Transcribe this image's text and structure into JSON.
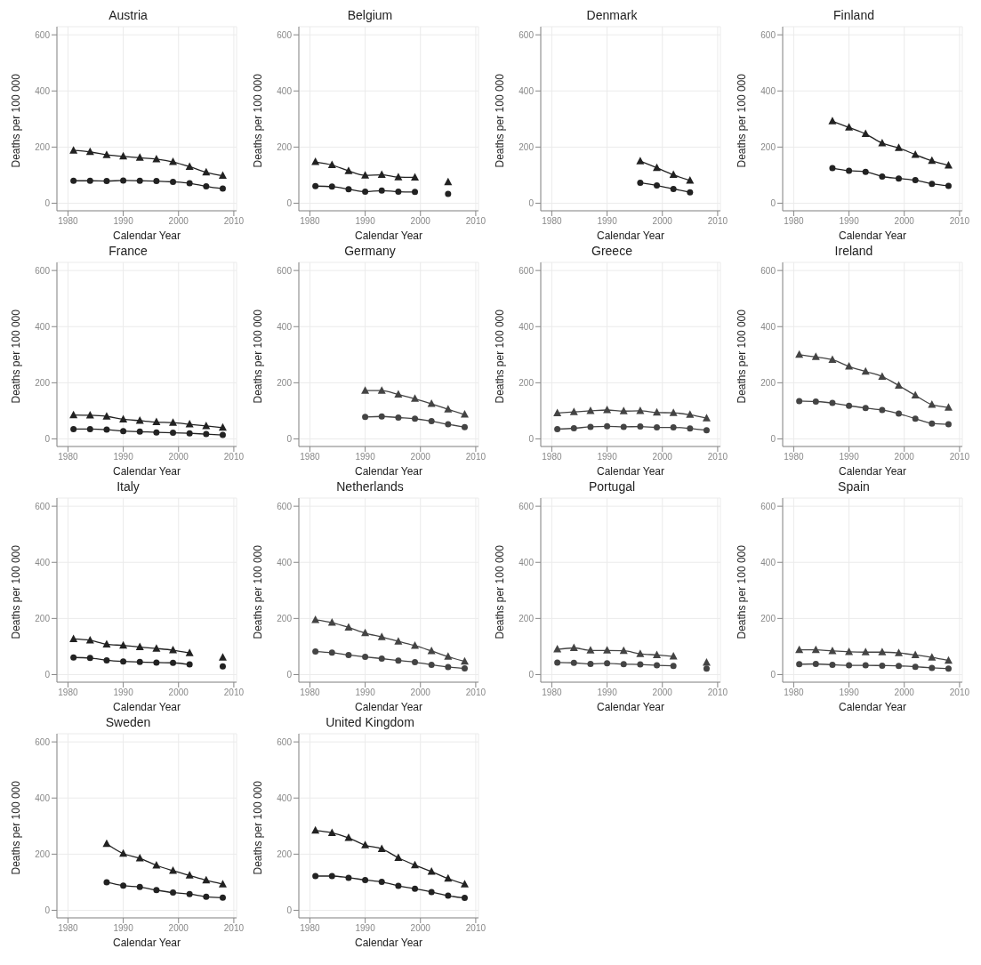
{
  "chart_data": [
    {
      "type": "line",
      "title": "Austria",
      "xlabel": "Calendar Year",
      "ylabel": "Deaths per 100 000",
      "x": [
        1981,
        1984,
        1987,
        1990,
        1993,
        1996,
        1999,
        2002,
        2005,
        2008
      ],
      "xlim": [
        1978,
        2010.5
      ],
      "xticks": [
        1980,
        1990,
        2000,
        2010
      ],
      "ylim": [
        -27,
        629
      ],
      "yticks": [
        0,
        200,
        400,
        600
      ],
      "grid": true,
      "legend": false,
      "line_style": "solid",
      "series": [
        {
          "color": "#222222",
          "marker": "triangle",
          "values": [
            188,
            183,
            172,
            167,
            162,
            157,
            147,
            130,
            110,
            98
          ]
        },
        {
          "color": "#222222",
          "marker": "circle",
          "values": [
            80,
            80,
            79,
            81,
            80,
            79,
            76,
            71,
            60,
            52
          ]
        }
      ]
    },
    {
      "type": "line",
      "title": "Belgium",
      "xlabel": "Calendar Year",
      "ylabel": "Deaths per 100 000",
      "x": [
        1981,
        1984,
        1987,
        1990,
        1993,
        1996,
        1999,
        2002,
        2005
      ],
      "xlim": [
        1978,
        2010.5
      ],
      "xticks": [
        1980,
        1990,
        2000,
        2010
      ],
      "ylim": [
        -27,
        629
      ],
      "yticks": [
        0,
        200,
        400,
        600
      ],
      "grid": true,
      "legend": false,
      "line_style": "solid",
      "series": [
        {
          "color": "#222222",
          "marker": "triangle",
          "values": [
            147,
            136,
            115,
            99,
            101,
            93,
            92,
            null,
            75
          ]
        },
        {
          "color": "#222222",
          "marker": "circle",
          "values": [
            61,
            59,
            50,
            41,
            45,
            41,
            40,
            null,
            33
          ]
        }
      ]
    },
    {
      "type": "line",
      "title": "Denmark",
      "xlabel": "Calendar Year",
      "ylabel": "Deaths per 100 000",
      "x": [
        1996,
        1999,
        2002,
        2005
      ],
      "xlim": [
        1978,
        2010.5
      ],
      "xticks": [
        1980,
        1990,
        2000,
        2010
      ],
      "ylim": [
        -27,
        629
      ],
      "yticks": [
        0,
        200,
        400,
        600
      ],
      "grid": true,
      "legend": false,
      "line_style": "solid",
      "series": [
        {
          "color": "#222222",
          "marker": "triangle",
          "values": [
            150,
            126,
            101,
            81
          ]
        },
        {
          "color": "#222222",
          "marker": "circle",
          "values": [
            73,
            63,
            51,
            39
          ]
        }
      ]
    },
    {
      "type": "line",
      "title": "Finland",
      "xlabel": "Calendar Year",
      "ylabel": "Deaths per 100 000",
      "x": [
        1987,
        1990,
        1993,
        1996,
        1999,
        2002,
        2005,
        2008
      ],
      "xlim": [
        1978,
        2010.5
      ],
      "xticks": [
        1980,
        1990,
        2000,
        2010
      ],
      "ylim": [
        -27,
        629
      ],
      "yticks": [
        0,
        200,
        400,
        600
      ],
      "grid": true,
      "legend": false,
      "line_style": "solid",
      "series": [
        {
          "color": "#222222",
          "marker": "triangle",
          "values": [
            292,
            270,
            247,
            214,
            197,
            173,
            151,
            135
          ]
        },
        {
          "color": "#222222",
          "marker": "circle",
          "values": [
            125,
            116,
            112,
            95,
            88,
            82,
            69,
            62
          ]
        }
      ]
    },
    {
      "type": "line",
      "title": "France",
      "xlabel": "Calendar Year",
      "ylabel": "Deaths per 100 000",
      "x": [
        1981,
        1984,
        1987,
        1990,
        1993,
        1996,
        1999,
        2002,
        2005,
        2008
      ],
      "xlim": [
        1978,
        2010.5
      ],
      "xticks": [
        1980,
        1990,
        2000,
        2010
      ],
      "ylim": [
        -27,
        629
      ],
      "yticks": [
        0,
        200,
        400,
        600
      ],
      "grid": true,
      "legend": false,
      "line_style": "solid",
      "series": [
        {
          "color": "#222222",
          "marker": "triangle",
          "values": [
            85,
            84,
            80,
            70,
            65,
            60,
            58,
            52,
            46,
            40
          ]
        },
        {
          "color": "#222222",
          "marker": "circle",
          "values": [
            35,
            35,
            33,
            28,
            26,
            23,
            22,
            20,
            17,
            14
          ]
        }
      ]
    },
    {
      "type": "line",
      "title": "Germany",
      "xlabel": "Calendar Year",
      "ylabel": "Deaths per 100 000",
      "x": [
        1990,
        1993,
        1996,
        1999,
        2002,
        2005,
        2008
      ],
      "xlim": [
        1978,
        2010.5
      ],
      "xticks": [
        1980,
        1990,
        2000,
        2010
      ],
      "ylim": [
        -27,
        629
      ],
      "yticks": [
        0,
        200,
        400,
        600
      ],
      "grid": true,
      "legend": false,
      "line_style": "solid",
      "series": [
        {
          "color": "#444444",
          "marker": "triangle",
          "values": [
            172,
            172,
            158,
            143,
            125,
            105,
            87
          ]
        },
        {
          "color": "#444444",
          "marker": "circle",
          "values": [
            78,
            80,
            76,
            72,
            63,
            52,
            42
          ]
        }
      ]
    },
    {
      "type": "line",
      "title": "Greece",
      "xlabel": "Calendar Year",
      "ylabel": "Deaths per 100 000",
      "x": [
        1981,
        1984,
        1987,
        1990,
        1993,
        1996,
        1999,
        2002,
        2005,
        2008
      ],
      "xlim": [
        1978,
        2010.5
      ],
      "xticks": [
        1980,
        1990,
        2000,
        2010
      ],
      "ylim": [
        -27,
        629
      ],
      "yticks": [
        0,
        200,
        400,
        600
      ],
      "grid": true,
      "legend": false,
      "line_style": "solid",
      "series": [
        {
          "color": "#444444",
          "marker": "triangle",
          "values": [
            92,
            96,
            100,
            103,
            99,
            100,
            94,
            93,
            86,
            74
          ]
        },
        {
          "color": "#444444",
          "marker": "circle",
          "values": [
            35,
            38,
            43,
            45,
            43,
            44,
            41,
            41,
            37,
            31
          ]
        }
      ]
    },
    {
      "type": "line",
      "title": "Ireland",
      "xlabel": "Calendar Year",
      "ylabel": "Deaths per 100 000",
      "x": [
        1981,
        1984,
        1987,
        1990,
        1993,
        1996,
        1999,
        2002,
        2005,
        2008
      ],
      "xlim": [
        1978,
        2010.5
      ],
      "xticks": [
        1980,
        1990,
        2000,
        2010
      ],
      "ylim": [
        -27,
        629
      ],
      "yticks": [
        0,
        200,
        400,
        600
      ],
      "grid": true,
      "legend": false,
      "line_style": "solid",
      "series": [
        {
          "color": "#444444",
          "marker": "triangle",
          "values": [
            300,
            292,
            282,
            258,
            240,
            222,
            190,
            155,
            122,
            112
          ]
        },
        {
          "color": "#444444",
          "marker": "circle",
          "values": [
            135,
            133,
            128,
            118,
            110,
            103,
            90,
            72,
            55,
            52
          ]
        }
      ]
    },
    {
      "type": "line",
      "title": "Italy",
      "xlabel": "Calendar Year",
      "ylabel": "Deaths per 100 000",
      "x": [
        1981,
        1984,
        1987,
        1990,
        1993,
        1996,
        1999,
        2002,
        2005,
        2008
      ],
      "xlim": [
        1978,
        2010.5
      ],
      "xticks": [
        1980,
        1990,
        2000,
        2010
      ],
      "ylim": [
        -27,
        629
      ],
      "yticks": [
        0,
        200,
        400,
        600
      ],
      "grid": true,
      "legend": false,
      "line_style": "solid",
      "series": [
        {
          "color": "#222222",
          "marker": "triangle",
          "values": [
            127,
            122,
            108,
            104,
            98,
            93,
            87,
            77,
            null,
            61
          ]
        },
        {
          "color": "#222222",
          "marker": "circle",
          "values": [
            61,
            59,
            51,
            47,
            45,
            43,
            42,
            36,
            null,
            29
          ]
        }
      ]
    },
    {
      "type": "line",
      "title": "Netherlands",
      "xlabel": "Calendar Year",
      "ylabel": "Deaths per 100 000",
      "x": [
        1981,
        1984,
        1987,
        1990,
        1993,
        1996,
        1999,
        2002,
        2005,
        2008
      ],
      "xlim": [
        1978,
        2010.5
      ],
      "xticks": [
        1980,
        1990,
        2000,
        2010
      ],
      "ylim": [
        -27,
        629
      ],
      "yticks": [
        0,
        200,
        400,
        600
      ],
      "grid": true,
      "legend": false,
      "line_style": "solid",
      "series": [
        {
          "color": "#444444",
          "marker": "triangle",
          "values": [
            195,
            185,
            168,
            148,
            134,
            118,
            103,
            84,
            64,
            47
          ]
        },
        {
          "color": "#444444",
          "marker": "circle",
          "values": [
            82,
            78,
            70,
            63,
            57,
            50,
            44,
            35,
            27,
            22
          ]
        }
      ]
    },
    {
      "type": "line",
      "title": "Portugal",
      "xlabel": "Calendar Year",
      "ylabel": "Deaths per 100 000",
      "x": [
        1981,
        1984,
        1987,
        1990,
        1993,
        1996,
        1999,
        2002,
        2005,
        2008
      ],
      "xlim": [
        1978,
        2010.5
      ],
      "xticks": [
        1980,
        1990,
        2000,
        2010
      ],
      "ylim": [
        -27,
        629
      ],
      "yticks": [
        0,
        200,
        400,
        600
      ],
      "grid": true,
      "legend": false,
      "line_style": "solid",
      "series": [
        {
          "color": "#444444",
          "marker": "triangle",
          "values": [
            90,
            95,
            86,
            86,
            85,
            74,
            70,
            65,
            null,
            43
          ]
        },
        {
          "color": "#444444",
          "marker": "circle",
          "values": [
            43,
            42,
            38,
            40,
            37,
            36,
            33,
            31,
            null,
            21
          ]
        }
      ]
    },
    {
      "type": "line",
      "title": "Spain",
      "xlabel": "Calendar Year",
      "ylabel": "Deaths per 100 000",
      "x": [
        1981,
        1984,
        1987,
        1990,
        1993,
        1996,
        1999,
        2002,
        2005,
        2008
      ],
      "xlim": [
        1978,
        2010.5
      ],
      "xticks": [
        1980,
        1990,
        2000,
        2010
      ],
      "ylim": [
        -27,
        629
      ],
      "yticks": [
        0,
        200,
        400,
        600
      ],
      "grid": true,
      "legend": false,
      "line_style": "solid",
      "series": [
        {
          "color": "#444444",
          "marker": "triangle",
          "values": [
            88,
            88,
            84,
            81,
            80,
            80,
            77,
            70,
            61,
            50
          ]
        },
        {
          "color": "#444444",
          "marker": "circle",
          "values": [
            37,
            38,
            35,
            33,
            33,
            32,
            31,
            28,
            24,
            21
          ]
        }
      ]
    },
    {
      "type": "line",
      "title": "Sweden",
      "xlabel": "Calendar Year",
      "ylabel": "Deaths per 100 000",
      "x": [
        1987,
        1990,
        1993,
        1996,
        1999,
        2002,
        2005,
        2008
      ],
      "xlim": [
        1978,
        2010.5
      ],
      "xticks": [
        1980,
        1990,
        2000,
        2010
      ],
      "ylim": [
        -27,
        629
      ],
      "yticks": [
        0,
        200,
        400,
        600
      ],
      "grid": true,
      "legend": false,
      "line_style": "solid",
      "series": [
        {
          "color": "#222222",
          "marker": "triangle",
          "values": [
            237,
            202,
            185,
            160,
            141,
            124,
            107,
            93
          ]
        },
        {
          "color": "#222222",
          "marker": "circle",
          "values": [
            100,
            88,
            83,
            72,
            63,
            58,
            48,
            45
          ]
        }
      ]
    },
    {
      "type": "line",
      "title": "United Kingdom",
      "xlabel": "Calendar Year",
      "ylabel": "Deaths per 100 000",
      "x": [
        1981,
        1984,
        1987,
        1990,
        1993,
        1996,
        1999,
        2002,
        2005,
        2008
      ],
      "xlim": [
        1978,
        2010.5
      ],
      "xticks": [
        1980,
        1990,
        2000,
        2010
      ],
      "ylim": [
        -27,
        629
      ],
      "yticks": [
        0,
        200,
        400,
        600
      ],
      "grid": true,
      "legend": false,
      "line_style": "solid",
      "series": [
        {
          "color": "#222222",
          "marker": "triangle",
          "values": [
            284,
            276,
            258,
            232,
            219,
            187,
            161,
            138,
            113,
            93
          ]
        },
        {
          "color": "#222222",
          "marker": "circle",
          "values": [
            122,
            122,
            116,
            108,
            101,
            87,
            77,
            65,
            52,
            44
          ]
        }
      ]
    }
  ]
}
